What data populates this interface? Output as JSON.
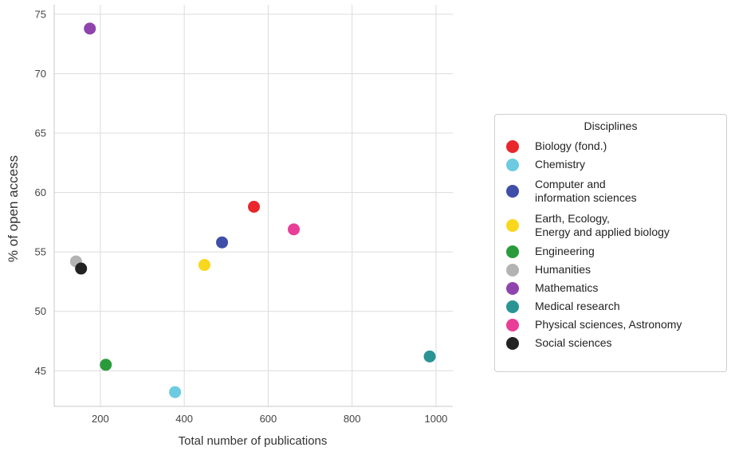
{
  "chart_data": {
    "type": "scatter",
    "title": "",
    "xlabel": "Total number of publications",
    "ylabel": "%  of open access",
    "xlim": [
      90,
      1040
    ],
    "ylim": [
      42.0,
      75.8
    ],
    "xticks": [
      200,
      400,
      600,
      800,
      1000
    ],
    "yticks": [
      45,
      50,
      55,
      60,
      65,
      70,
      75
    ],
    "grid": true,
    "legend": {
      "title": "Disciplines",
      "placement": "outside-right"
    },
    "series": [
      {
        "name": "Biology (fond.)",
        "color": "#e8262b",
        "points": [
          {
            "x": 566,
            "y": 58.8
          }
        ]
      },
      {
        "name": "Chemistry",
        "color": "#6ccbe0",
        "points": [
          {
            "x": 378,
            "y": 43.2
          }
        ]
      },
      {
        "name": "Computer and\n information sciences",
        "color": "#3f4ea8",
        "points": [
          {
            "x": 490,
            "y": 55.8
          }
        ]
      },
      {
        "name": "Earth, Ecology,\nEnergy and applied biology",
        "color": "#f9d71c",
        "points": [
          {
            "x": 448,
            "y": 53.9
          }
        ]
      },
      {
        "name": "Engineering",
        "color": "#2a9b3a",
        "points": [
          {
            "x": 213,
            "y": 45.5
          }
        ]
      },
      {
        "name": "Humanities",
        "color": "#b3b3b3",
        "points": [
          {
            "x": 142,
            "y": 54.2
          }
        ]
      },
      {
        "name": "Mathematics",
        "color": "#8e44ad",
        "points": [
          {
            "x": 175,
            "y": 73.8
          }
        ]
      },
      {
        "name": "Medical research",
        "color": "#2a9494",
        "points": [
          {
            "x": 985,
            "y": 46.2
          }
        ]
      },
      {
        "name": "Physical sciences, Astronomy",
        "color": "#e83e98",
        "points": [
          {
            "x": 661,
            "y": 56.9
          }
        ]
      },
      {
        "name": "Social sciences",
        "color": "#222222",
        "points": [
          {
            "x": 154,
            "y": 53.6
          }
        ]
      }
    ]
  }
}
